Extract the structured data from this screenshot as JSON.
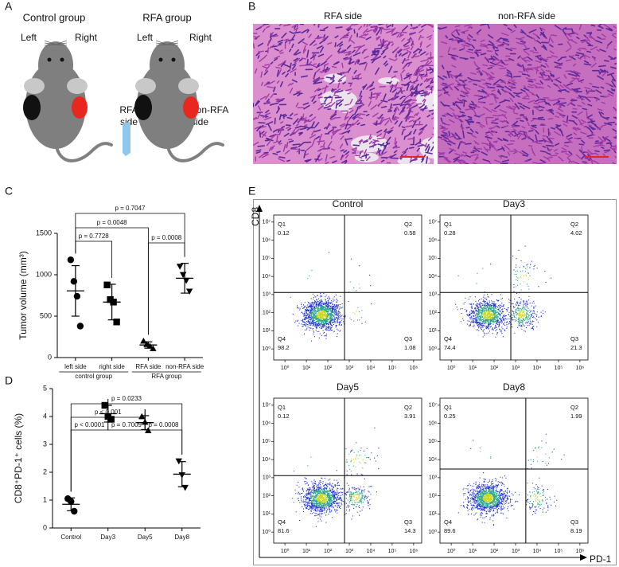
{
  "figure": {
    "panel_labels": [
      "A",
      "B",
      "C",
      "D",
      "E"
    ],
    "panel_a": {
      "groups": [
        {
          "title": "Control group",
          "left": "Left",
          "right": "Right"
        },
        {
          "title": "RFA group",
          "left": "Left",
          "right": "Right"
        }
      ],
      "rfa_label": [
        "RFA",
        "side"
      ],
      "non_rfa_label": [
        "non-RFA",
        "side"
      ]
    },
    "panel_b": {
      "titles": [
        "RFA side",
        "non-RFA side"
      ]
    },
    "panel_e": {
      "y_axis": "CD8",
      "x_axis": "PD-1"
    }
  },
  "chart_data": [
    {
      "type": "dot",
      "categories": [
        "left side",
        "right side",
        "RFA side",
        "non-RFA side"
      ],
      "groups": [
        "control group",
        "RFA group"
      ],
      "ylabel": "Tumor volume (mm³)",
      "ylim": [
        0,
        1500
      ],
      "yticks": [
        0,
        500,
        1000,
        1500
      ],
      "color": "#000000",
      "markers": [
        "circle",
        "square",
        "triangle",
        "triangle-down"
      ],
      "points": [
        [
          1180,
          920,
          740,
          380
        ],
        [
          877,
          700,
          670,
          430
        ],
        [
          200,
          160,
          140,
          110
        ],
        [
          1100,
          1000,
          930,
          800
        ]
      ],
      "mean": [
        805,
        670,
        152,
        958
      ],
      "sd": [
        305,
        215,
        38,
        180
      ],
      "annotations": [
        "p = 0.7047",
        "p = 0.0048",
        "p = 0.7728",
        "p = 0.0008"
      ]
    },
    {
      "type": "dot",
      "categories": [
        "Control",
        "Day3",
        "Day5",
        "Day8"
      ],
      "ylabel": "CD8⁺PD-1⁺ cells (%)",
      "ylim": [
        0,
        5
      ],
      "yticks": [
        0,
        1,
        2,
        3,
        4,
        5
      ],
      "color": "#000000",
      "markers": [
        "circle",
        "square",
        "triangle",
        "triangle-down"
      ],
      "points": [
        [
          1.05,
          0.95,
          0.6
        ],
        [
          4.4,
          4.0,
          3.9
        ],
        [
          4.0,
          3.8,
          3.5
        ],
        [
          2.4,
          1.9,
          1.45
        ]
      ],
      "mean": [
        0.85,
        4.1,
        3.78,
        1.93
      ],
      "sd": [
        0.23,
        0.3,
        0.25,
        0.45
      ],
      "annotations": [
        "p = 0.0233",
        "p < 0.001",
        "p < 0.0001",
        "p = 0.7009",
        "p = 0.0008"
      ]
    },
    {
      "type": "flow",
      "title": "Control",
      "quadrant_names": [
        "Q1",
        "Q2",
        "Q3",
        "Q4"
      ],
      "values": [
        0.12,
        0.58,
        1.08,
        98.2
      ],
      "xscale": "log",
      "yscale": "log",
      "xlim": [
        0.5,
        2000000
      ],
      "ylim": [
        0.5,
        20000000
      ],
      "xticks": [
        {
          "value": 1,
          "label": "10⁰"
        },
        {
          "value": 10,
          "label": "10¹"
        },
        {
          "value": 100,
          "label": "10²"
        },
        {
          "value": 1000,
          "label": "10³"
        },
        {
          "value": 10000,
          "label": "10⁴"
        },
        {
          "value": 100000,
          "label": "10⁵"
        },
        {
          "value": 1000000,
          "label": "10⁶"
        }
      ],
      "yticks": [
        {
          "value": 1,
          "label": "10⁰"
        },
        {
          "value": 10,
          "label": "10¹"
        },
        {
          "value": 100,
          "label": "10²"
        },
        {
          "value": 1000,
          "label": "10³"
        },
        {
          "value": 10000,
          "label": "10⁴"
        },
        {
          "value": 100000,
          "label": "10⁵"
        },
        {
          "value": 1000000,
          "label": "10⁶"
        },
        {
          "value": 10000000,
          "label": "10⁷"
        }
      ],
      "gate": {
        "x": 600,
        "y": 1300
      }
    },
    {
      "type": "flow",
      "title": "Day3",
      "quadrant_names": [
        "Q1",
        "Q2",
        "Q3",
        "Q4"
      ],
      "values": [
        0.28,
        4.02,
        21.3,
        74.4
      ],
      "xscale": "log",
      "yscale": "log",
      "xlim": [
        0.5,
        2000000
      ],
      "ylim": [
        0.5,
        20000000
      ],
      "xticks": [
        {
          "value": 1,
          "label": "10⁰"
        },
        {
          "value": 10,
          "label": "10¹"
        },
        {
          "value": 100,
          "label": "10²"
        },
        {
          "value": 1000,
          "label": "10³"
        },
        {
          "value": 10000,
          "label": "10⁴"
        },
        {
          "value": 100000,
          "label": "10⁵"
        },
        {
          "value": 1000000,
          "label": "10⁶"
        }
      ],
      "yticks": [
        {
          "value": 1,
          "label": "10⁰"
        },
        {
          "value": 10,
          "label": "10¹"
        },
        {
          "value": 100,
          "label": "10²"
        },
        {
          "value": 1000,
          "label": "10³"
        },
        {
          "value": 10000,
          "label": "10⁴"
        },
        {
          "value": 100000,
          "label": "10⁵"
        },
        {
          "value": 1000000,
          "label": "10⁶"
        },
        {
          "value": 10000000,
          "label": "10⁷"
        }
      ],
      "gate": {
        "x": 600,
        "y": 1300
      }
    },
    {
      "type": "flow",
      "title": "Day5",
      "quadrant_names": [
        "Q1",
        "Q2",
        "Q3",
        "Q4"
      ],
      "values": [
        0.12,
        3.91,
        14.3,
        81.6
      ],
      "xscale": "log",
      "yscale": "log",
      "xlim": [
        0.5,
        2000000
      ],
      "ylim": [
        0.5,
        20000000
      ],
      "xticks": [
        {
          "value": 1,
          "label": "10⁰"
        },
        {
          "value": 10,
          "label": "10¹"
        },
        {
          "value": 100,
          "label": "10²"
        },
        {
          "value": 1000,
          "label": "10³"
        },
        {
          "value": 10000,
          "label": "10⁴"
        },
        {
          "value": 100000,
          "label": "10⁵"
        },
        {
          "value": 1000000,
          "label": "10⁶"
        }
      ],
      "yticks": [
        {
          "value": 1,
          "label": "10⁰"
        },
        {
          "value": 10,
          "label": "10¹"
        },
        {
          "value": 100,
          "label": "10²"
        },
        {
          "value": 1000,
          "label": "10³"
        },
        {
          "value": 10000,
          "label": "10⁴"
        },
        {
          "value": 100000,
          "label": "10⁵"
        },
        {
          "value": 1000000,
          "label": "10⁶"
        },
        {
          "value": 10000000,
          "label": "10⁷"
        }
      ],
      "gate": {
        "x": 600,
        "y": 1300
      }
    },
    {
      "type": "flow",
      "title": "Day8",
      "quadrant_names": [
        "Q1",
        "Q2",
        "Q3",
        "Q4"
      ],
      "values": [
        0.25,
        1.99,
        8.19,
        89.6
      ],
      "xscale": "log",
      "yscale": "log",
      "xlim": [
        0.5,
        2000000
      ],
      "ylim": [
        0.5,
        20000000
      ],
      "xticks": [
        {
          "value": 1,
          "label": "10⁰"
        },
        {
          "value": 10,
          "label": "10¹"
        },
        {
          "value": 100,
          "label": "10²"
        },
        {
          "value": 1000,
          "label": "10³"
        },
        {
          "value": 10000,
          "label": "10⁴"
        },
        {
          "value": 100000,
          "label": "10⁵"
        },
        {
          "value": 1000000,
          "label": "10⁶"
        }
      ],
      "yticks": [
        {
          "value": 1,
          "label": "10⁰"
        },
        {
          "value": 10,
          "label": "10¹"
        },
        {
          "value": 100,
          "label": "10²"
        },
        {
          "value": 1000,
          "label": "10³"
        },
        {
          "value": 10000,
          "label": "10⁴"
        },
        {
          "value": 100000,
          "label": "10⁵"
        },
        {
          "value": 1000000,
          "label": "10⁶"
        },
        {
          "value": 10000000,
          "label": "10⁷"
        }
      ],
      "gate": {
        "x": 3000,
        "y": 3000
      }
    }
  ]
}
